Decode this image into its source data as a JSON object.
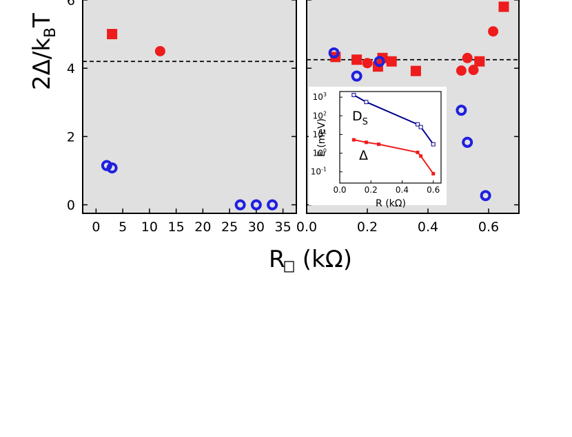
{
  "colors": {
    "red": "#ee1c1c",
    "blue": "#1f1fe0",
    "navy": "#00008b",
    "panel_bg": "#e0e0e0"
  },
  "y_axis_label": {
    "main": "2Δ/k",
    "sub": "B",
    "tail": "T"
  },
  "x_axis_label": {
    "main": "R",
    "tail": " (kΩ)"
  },
  "inset_labels": {
    "ylabel": "E (meV)",
    "xlabel": "R (kΩ)",
    "ds_main": "D",
    "ds_sub": "S",
    "delta": "Δ"
  },
  "chart_data": [
    {
      "type": "scatter",
      "panel": "left",
      "xlabel": "R□ (kΩ)",
      "ylabel": "2Δ/kBT",
      "xlim": [
        -2.5,
        37.5
      ],
      "ylim": [
        -0.25,
        6.2
      ],
      "xticks": [
        "0",
        "5",
        "10",
        "15",
        "20",
        "25",
        "30",
        "35"
      ],
      "yticks": [
        "0",
        "2",
        "4",
        "6"
      ],
      "reference_line": {
        "y": 4.2,
        "style": "dashed"
      },
      "series": [
        {
          "marker": "square",
          "color": "red",
          "points": [
            [
              3,
              5.0
            ]
          ]
        },
        {
          "marker": "circle",
          "color": "red",
          "points": [
            [
              12,
              4.5
            ]
          ]
        },
        {
          "marker": "open-circle",
          "color": "blue",
          "points": [
            [
              2,
              1.15
            ],
            [
              3,
              1.08
            ],
            [
              27,
              0.0
            ],
            [
              30,
              0.0
            ],
            [
              33,
              0.0
            ]
          ]
        }
      ]
    },
    {
      "type": "scatter",
      "panel": "right",
      "xlabel": "R□ (kΩ)",
      "ylabel": "2Δ/kBT",
      "xlim": [
        0.0,
        0.7
      ],
      "ylim": [
        -0.25,
        6.2
      ],
      "xticks": [
        "0.0",
        "0.2",
        "0.4",
        "0.6"
      ],
      "yticks": [
        "0",
        "2",
        "4",
        "6"
      ],
      "reference_line": {
        "y": 4.25,
        "style": "dashed"
      },
      "series": [
        {
          "marker": "square",
          "color": "red",
          "points": [
            [
              0.095,
              4.33
            ],
            [
              0.165,
              4.25
            ],
            [
              0.235,
              4.05
            ],
            [
              0.25,
              4.3
            ],
            [
              0.28,
              4.2
            ],
            [
              0.36,
              3.92
            ],
            [
              0.57,
              4.2
            ],
            [
              0.65,
              5.8
            ]
          ]
        },
        {
          "marker": "circle",
          "color": "red",
          "points": [
            [
              0.2,
              4.15
            ],
            [
              0.51,
              3.93
            ],
            [
              0.53,
              4.3
            ],
            [
              0.55,
              3.95
            ],
            [
              0.615,
              5.08
            ]
          ]
        },
        {
          "marker": "open-circle",
          "color": "blue",
          "points": [
            [
              0.09,
              4.45
            ],
            [
              0.165,
              3.77
            ],
            [
              0.24,
              4.2
            ],
            [
              0.51,
              2.77
            ],
            [
              0.53,
              1.83
            ],
            [
              0.59,
              0.27
            ]
          ]
        }
      ]
    },
    {
      "type": "line",
      "panel": "inset",
      "xlabel": "R (kΩ)",
      "ylabel": "E (meV)",
      "xlim": [
        0.0,
        0.65
      ],
      "yscale": "log",
      "ylim_exp": [
        -1.6,
        3.3
      ],
      "xticks": [
        "0.0",
        "0.2",
        "0.4",
        "0.6"
      ],
      "yticks_exp": [
        "-1",
        "0",
        "1",
        "2",
        "3"
      ],
      "series": [
        {
          "name": "D_S",
          "marker": "open-square",
          "color": "navy",
          "x": [
            0.09,
            0.17,
            0.5,
            0.52,
            0.6
          ],
          "y": [
            1300,
            550,
            35,
            25,
            3
          ]
        },
        {
          "name": "Δ",
          "marker": "square",
          "color": "red",
          "x": [
            0.09,
            0.17,
            0.25,
            0.5,
            0.52,
            0.6
          ],
          "y": [
            5.2,
            3.8,
            3.0,
            1.1,
            0.7,
            0.08
          ]
        }
      ]
    }
  ]
}
